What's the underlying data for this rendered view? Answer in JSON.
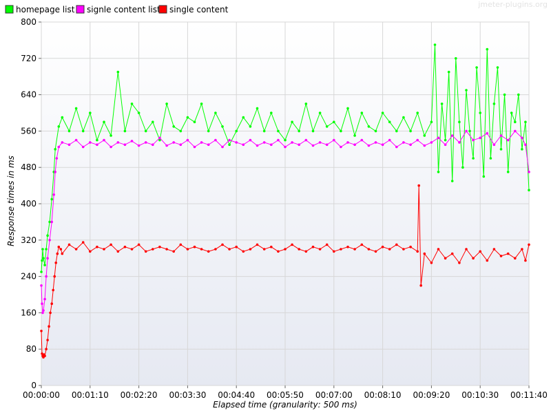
{
  "watermark": "jmeter-plugins.org",
  "chart_data": {
    "type": "line",
    "title": "",
    "xlabel": "Elapsed time (granularity: 500 ms)",
    "ylabel": "Response times in ms",
    "x_unit": "seconds",
    "xlim": [
      0,
      700
    ],
    "ylim": [
      0,
      800
    ],
    "y_ticks": [
      0,
      80,
      160,
      240,
      320,
      400,
      480,
      560,
      640,
      720,
      800
    ],
    "x_ticks": [
      "00:00:00",
      "00:01:10",
      "00:02:20",
      "00:03:30",
      "00:04:40",
      "00:05:50",
      "00:07:00",
      "00:08:10",
      "00:09:20",
      "00:10:30",
      "00:11:40"
    ],
    "x_tick_seconds": [
      0,
      70,
      140,
      210,
      280,
      350,
      420,
      490,
      560,
      630,
      700
    ],
    "grid": true,
    "legend_position": "top-left",
    "series": [
      {
        "name": "homepage list",
        "color": "#00ff00",
        "x": [
          0,
          1,
          2,
          3,
          5,
          7,
          9,
          12,
          15,
          18,
          20,
          25,
          30,
          40,
          50,
          60,
          70,
          80,
          90,
          100,
          110,
          120,
          130,
          140,
          150,
          160,
          170,
          180,
          190,
          200,
          210,
          220,
          230,
          240,
          250,
          260,
          270,
          280,
          290,
          300,
          310,
          320,
          330,
          340,
          350,
          360,
          370,
          380,
          390,
          400,
          410,
          420,
          430,
          440,
          450,
          460,
          470,
          480,
          490,
          500,
          510,
          520,
          530,
          540,
          550,
          560,
          565,
          570,
          575,
          580,
          585,
          590,
          595,
          600,
          605,
          610,
          615,
          620,
          625,
          630,
          635,
          640,
          645,
          650,
          655,
          660,
          665,
          670,
          675,
          680,
          685,
          690,
          695,
          700
        ],
        "values": [
          250,
          275,
          300,
          280,
          265,
          300,
          330,
          360,
          410,
          470,
          520,
          570,
          590,
          560,
          610,
          560,
          600,
          540,
          580,
          550,
          690,
          560,
          620,
          600,
          560,
          580,
          540,
          620,
          570,
          560,
          590,
          580,
          620,
          560,
          600,
          570,
          530,
          560,
          590,
          570,
          610,
          560,
          600,
          560,
          540,
          580,
          560,
          620,
          560,
          600,
          570,
          580,
          560,
          610,
          550,
          600,
          570,
          560,
          600,
          580,
          560,
          590,
          560,
          600,
          550,
          580,
          750,
          470,
          620,
          540,
          690,
          450,
          720,
          580,
          480,
          650,
          560,
          500,
          700,
          600,
          460,
          740,
          500,
          620,
          700,
          520,
          640,
          470,
          600,
          580,
          640,
          520,
          580,
          430
        ]
      },
      {
        "name": "signle content list",
        "color": "#ff00ff",
        "x": [
          0,
          1,
          2,
          3,
          5,
          7,
          9,
          12,
          15,
          18,
          20,
          22,
          25,
          30,
          40,
          50,
          60,
          70,
          80,
          90,
          100,
          110,
          120,
          130,
          140,
          150,
          160,
          170,
          180,
          190,
          200,
          210,
          220,
          230,
          240,
          250,
          260,
          270,
          280,
          290,
          300,
          310,
          320,
          330,
          340,
          350,
          360,
          370,
          380,
          390,
          400,
          410,
          420,
          430,
          440,
          450,
          460,
          470,
          480,
          490,
          500,
          510,
          520,
          530,
          540,
          550,
          560,
          570,
          580,
          590,
          600,
          610,
          620,
          630,
          640,
          650,
          660,
          670,
          680,
          690,
          695,
          700
        ],
        "values": [
          220,
          180,
          160,
          165,
          190,
          240,
          280,
          320,
          360,
          420,
          470,
          500,
          525,
          535,
          530,
          540,
          525,
          535,
          530,
          540,
          525,
          535,
          530,
          538,
          528,
          535,
          530,
          545,
          528,
          535,
          530,
          540,
          525,
          535,
          530,
          540,
          525,
          540,
          535,
          530,
          540,
          528,
          535,
          530,
          540,
          525,
          535,
          530,
          540,
          528,
          535,
          530,
          540,
          525,
          535,
          530,
          540,
          528,
          535,
          530,
          540,
          525,
          535,
          530,
          540,
          528,
          535,
          545,
          530,
          550,
          535,
          560,
          540,
          545,
          555,
          530,
          550,
          540,
          560,
          545,
          530,
          470
        ]
      },
      {
        "name": "single content",
        "color": "#ff0000",
        "x": [
          0,
          1,
          2,
          3,
          4,
          5,
          7,
          9,
          11,
          13,
          15,
          17,
          19,
          21,
          23,
          25,
          28,
          30,
          40,
          50,
          60,
          70,
          80,
          90,
          100,
          110,
          120,
          130,
          140,
          150,
          160,
          170,
          180,
          190,
          200,
          210,
          220,
          230,
          240,
          250,
          260,
          270,
          280,
          290,
          300,
          310,
          320,
          330,
          340,
          350,
          360,
          370,
          380,
          390,
          400,
          410,
          420,
          430,
          440,
          450,
          460,
          470,
          480,
          490,
          500,
          510,
          520,
          530,
          540,
          542,
          545,
          550,
          560,
          570,
          580,
          590,
          600,
          610,
          620,
          630,
          640,
          650,
          660,
          670,
          680,
          690,
          695,
          700
        ],
        "values": [
          120,
          70,
          65,
          62,
          68,
          65,
          80,
          100,
          130,
          160,
          180,
          210,
          240,
          270,
          290,
          305,
          300,
          290,
          310,
          300,
          315,
          295,
          305,
          300,
          310,
          295,
          305,
          300,
          310,
          295,
          300,
          305,
          300,
          295,
          310,
          300,
          305,
          300,
          295,
          300,
          310,
          300,
          305,
          295,
          300,
          310,
          300,
          305,
          295,
          300,
          310,
          300,
          295,
          305,
          300,
          310,
          295,
          300,
          305,
          300,
          310,
          300,
          295,
          305,
          300,
          310,
          300,
          305,
          295,
          440,
          220,
          290,
          270,
          300,
          280,
          290,
          270,
          300,
          280,
          295,
          275,
          300,
          285,
          290,
          280,
          300,
          275,
          310
        ]
      }
    ]
  }
}
